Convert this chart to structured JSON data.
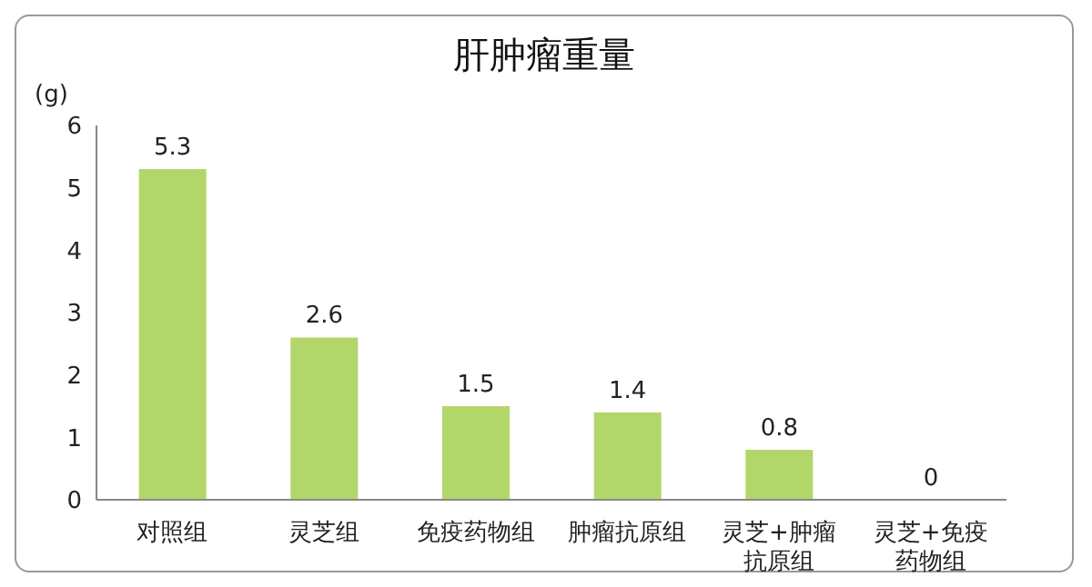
{
  "chart_data": {
    "type": "bar",
    "title": "肝肿瘤重量",
    "ylabel": "(g)",
    "categories": [
      "对照组",
      "灵芝组",
      "免疫药物组",
      "肿瘤抗原组",
      "灵芝+肿瘤抗原组",
      "灵芝+免疫药物组"
    ],
    "values": [
      5.3,
      2.6,
      1.5,
      1.4,
      0.8,
      0
    ],
    "color": "#b3d66a",
    "ylim": [
      0,
      6
    ],
    "yticks": [
      0,
      1,
      2,
      3,
      4,
      5,
      6
    ],
    "grid": false,
    "data_labels": true
  }
}
